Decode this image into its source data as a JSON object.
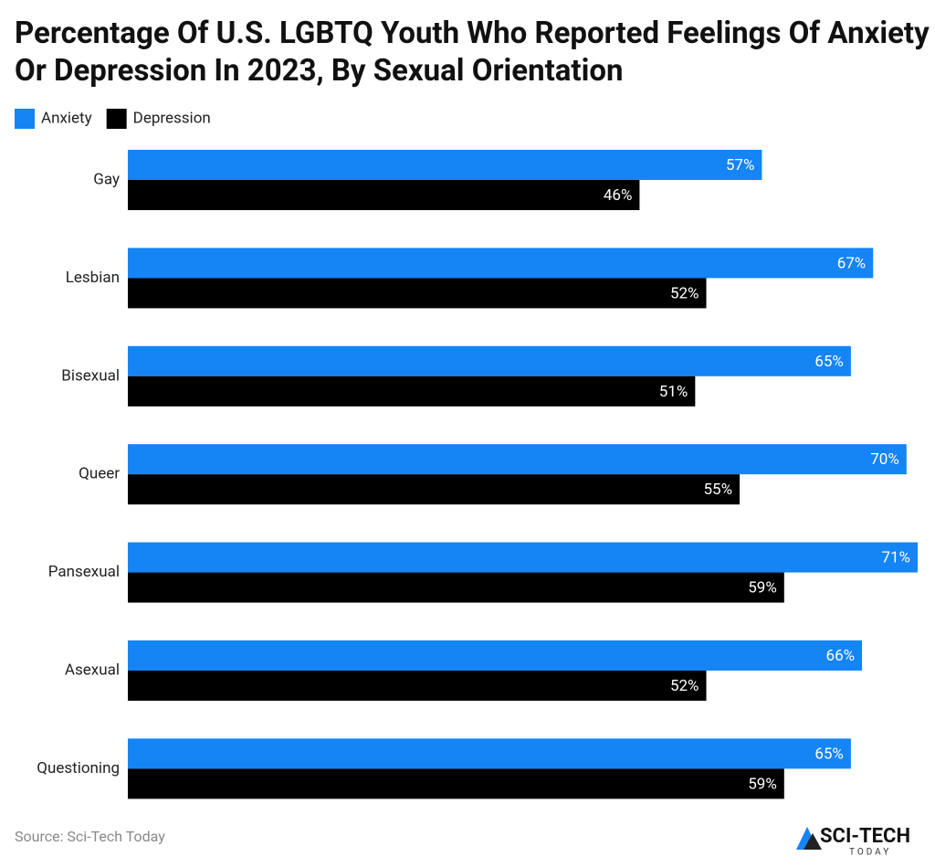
{
  "chart_data": {
    "type": "bar",
    "orientation": "horizontal",
    "title": "Percentage Of U.S. LGBTQ Youth Who Reported Feelings Of Anxiety Or Depression In 2023, By Sexual Orientation",
    "categories": [
      "Gay",
      "Lesbian",
      "Bisexual",
      "Queer",
      "Pansexual",
      "Asexual",
      "Questioning"
    ],
    "series": [
      {
        "name": "Anxiety",
        "color": "#1584f5",
        "values": [
          57,
          67,
          65,
          70,
          71,
          66,
          65
        ],
        "value_labels": [
          "57%",
          "67%",
          "65%",
          "70%",
          "71%",
          "66%",
          "65%"
        ]
      },
      {
        "name": "Depression",
        "color": "#000000",
        "values": [
          46,
          52,
          51,
          55,
          59,
          52,
          59
        ],
        "value_labels": [
          "46%",
          "52%",
          "51%",
          "55%",
          "59%",
          "52%",
          "59%"
        ]
      }
    ],
    "legend": "top-left",
    "source": "Source: Sci-Tech Today",
    "logo": {
      "name": "SCI-TECH",
      "tagline": "TODAY"
    }
  }
}
